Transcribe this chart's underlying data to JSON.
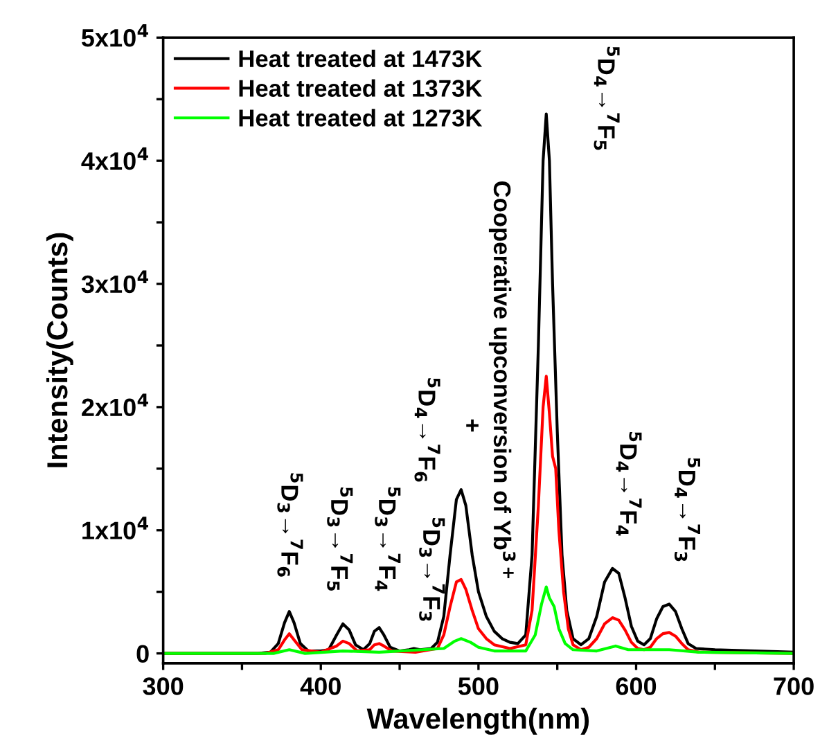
{
  "chart_data": {
    "type": "line",
    "xlabel": "Wavelength(nm)",
    "ylabel": "Intensity(Counts)",
    "xlim": [
      300,
      700
    ],
    "ylim": [
      -800,
      50000
    ],
    "xticks": [
      300,
      {
        "value": 350,
        "label": null
      },
      400,
      {
        "value": 450,
        "label": null
      },
      500,
      {
        "value": 550,
        "label": null
      },
      600,
      {
        "value": 650,
        "label": null
      },
      700
    ],
    "yticks": [
      0,
      {
        "value": 5000,
        "label": null
      },
      {
        "value": 10000,
        "label": "1x10$^{4}$"
      },
      {
        "value": 15000,
        "label": null
      },
      {
        "value": 20000,
        "label": "2x10$^{4}$"
      },
      {
        "value": 25000,
        "label": null
      },
      {
        "value": 30000,
        "label": "3x10$^{4}$"
      },
      {
        "value": 35000,
        "label": null
      },
      {
        "value": 40000,
        "label": "4x10$^{4}$"
      },
      {
        "value": 45000,
        "label": null
      },
      {
        "value": 50000,
        "label": "5x10$^{4}$"
      }
    ],
    "legend": "top left",
    "grid": false,
    "line_style": "solid",
    "marker": "none",
    "series": [
      {
        "name": "Heat treated at 1473K",
        "color": "#000000",
        "x": [
          300,
          360,
          368,
          373,
          377,
          380,
          383,
          387,
          392,
          400,
          405,
          410,
          414,
          418,
          422,
          427,
          431,
          434,
          437,
          440,
          444,
          450,
          456,
          459,
          463,
          470,
          474,
          478,
          482,
          486,
          489,
          492,
          496,
          500,
          505,
          510,
          515,
          520,
          525,
          530,
          534,
          538,
          541,
          543,
          545,
          547,
          550,
          553,
          556,
          560,
          565,
          570,
          575,
          580,
          585,
          589,
          593,
          597,
          601,
          605,
          609,
          613,
          617,
          621,
          625,
          629,
          633,
          638,
          650,
          700
        ],
        "values": [
          0,
          0,
          100,
          800,
          2500,
          3400,
          2500,
          800,
          200,
          200,
          300,
          1500,
          2400,
          1900,
          700,
          300,
          800,
          1800,
          2100,
          1500,
          500,
          200,
          300,
          400,
          300,
          400,
          900,
          3000,
          8000,
          12500,
          13300,
          12000,
          8000,
          5000,
          3000,
          1800,
          1200,
          900,
          800,
          1500,
          8000,
          25000,
          40000,
          43800,
          40000,
          30000,
          18000,
          8000,
          3500,
          1200,
          700,
          1200,
          3000,
          5800,
          6900,
          6500,
          4500,
          2200,
          1000,
          700,
          1200,
          2800,
          3800,
          4000,
          3400,
          2000,
          800,
          400,
          300,
          100
        ]
      },
      {
        "name": "Heat treated at 1373K",
        "color": "#ff0000",
        "x": [
          300,
          365,
          373,
          377,
          380,
          383,
          388,
          400,
          410,
          414,
          418,
          423,
          431,
          434,
          437,
          440,
          445,
          460,
          474,
          478,
          482,
          486,
          489,
          492,
          496,
          500,
          505,
          510,
          520,
          530,
          534,
          538,
          541,
          543,
          545,
          547,
          549,
          551,
          554,
          557,
          560,
          565,
          570,
          575,
          580,
          585,
          589,
          593,
          597,
          601,
          605,
          609,
          613,
          617,
          621,
          625,
          629,
          633,
          640,
          700
        ],
        "values": [
          0,
          0,
          300,
          1100,
          1600,
          1100,
          300,
          100,
          600,
          1000,
          800,
          200,
          300,
          700,
          800,
          600,
          200,
          100,
          400,
          1500,
          3800,
          5800,
          6000,
          5200,
          3500,
          2000,
          1200,
          700,
          400,
          700,
          3500,
          12000,
          20000,
          22500,
          19500,
          16000,
          15000,
          10000,
          5000,
          2000,
          700,
          300,
          500,
          1200,
          2400,
          2900,
          2700,
          1900,
          900,
          400,
          300,
          500,
          1200,
          1600,
          1700,
          1400,
          800,
          300,
          100,
          0
        ]
      },
      {
        "name": "Heat treated at 1273K",
        "color": "#00ff00",
        "x": [
          300,
          370,
          380,
          390,
          414,
          437,
          478,
          485,
          489,
          495,
          500,
          510,
          530,
          536,
          540,
          543,
          545,
          548,
          551,
          555,
          560,
          575,
          587,
          595,
          621,
          640,
          700
        ],
        "values": [
          0,
          0,
          300,
          0,
          200,
          100,
          400,
          1000,
          1200,
          900,
          500,
          200,
          200,
          1500,
          4000,
          5400,
          4500,
          3800,
          2000,
          800,
          300,
          200,
          600,
          300,
          300,
          100,
          0
        ]
      }
    ],
    "annotations": [
      {
        "text": "$^{5}$D$_{3}$→$^{7}$F$_{6}$",
        "x": 380,
        "y": 3400
      },
      {
        "text": "$^{5}$D$_{3}$→$^{7}$F$_{5}$",
        "x": 414,
        "y": 2400
      },
      {
        "text": "$^{5}$D$_{3}$→$^{7}$F$_{4}$",
        "x": 437,
        "y": 2100
      },
      {
        "text": "$^{5}$D$_{3}$→$^{7}$F$_{3}$",
        "x": 459,
        "y": 400
      },
      {
        "text": "$^{5}$D$_{4}$→$^{7}$F$_{6}$",
        "x": 489,
        "y": 13300
      },
      "+",
      "Cooperative upconversion of Yb$^{3+}$",
      {
        "text": "$^{5}$D$_{4}$→$^{7}$F$_{5}$",
        "x": 543,
        "y": 43800
      },
      {
        "text": "$^{5}$D$_{4}$→$^{7}$F$_{4}$",
        "x": 585,
        "y": 6900
      },
      {
        "text": "$^{5}$D$_{4}$→$^{7}$F$_{3}$",
        "x": 621,
        "y": 4000
      }
    ]
  }
}
